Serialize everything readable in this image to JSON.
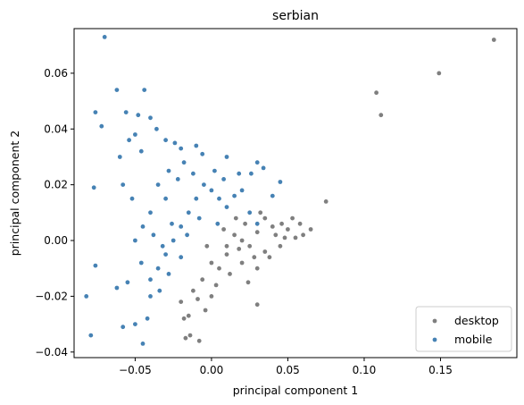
{
  "chart_data": {
    "type": "scatter",
    "title": "serbian",
    "xlabel": "principal component 1",
    "ylabel": "principal component 2",
    "xlim": [
      -0.09,
      0.2
    ],
    "ylim": [
      -0.042,
      0.076
    ],
    "xticks": [
      -0.05,
      0.0,
      0.05,
      0.1,
      0.15
    ],
    "xtick_labels": [
      "−0.05",
      "0.00",
      "0.05",
      "0.10",
      "0.15"
    ],
    "yticks": [
      -0.04,
      -0.02,
      0.0,
      0.02,
      0.04,
      0.06
    ],
    "ytick_labels": [
      "−0.04",
      "−0.02",
      "0.00",
      "0.02",
      "0.04",
      "0.06"
    ],
    "grid": false,
    "legend_position": "lower-right",
    "series": [
      {
        "name": "desktop",
        "color": "#7f7f7f",
        "points": [
          [
            0.185,
            0.072
          ],
          [
            0.149,
            0.06
          ],
          [
            0.108,
            0.053
          ],
          [
            0.111,
            0.045
          ],
          [
            0.075,
            0.014
          ],
          [
            0.065,
            0.004
          ],
          [
            0.058,
            0.006
          ],
          [
            0.055,
            0.001
          ],
          [
            0.05,
            0.004
          ],
          [
            0.048,
            0.001
          ],
          [
            0.053,
            0.008
          ],
          [
            0.045,
            -0.002
          ],
          [
            0.04,
            0.005
          ],
          [
            0.035,
            -0.004
          ],
          [
            0.032,
            0.01
          ],
          [
            0.03,
            -0.01
          ],
          [
            0.03,
            0.003
          ],
          [
            0.028,
            -0.006
          ],
          [
            0.025,
            -0.002
          ],
          [
            0.022,
            0.006
          ],
          [
            0.02,
            -0.008
          ],
          [
            0.018,
            -0.003
          ],
          [
            0.015,
            0.002
          ],
          [
            0.012,
            -0.012
          ],
          [
            0.01,
            -0.005
          ],
          [
            0.008,
            0.004
          ],
          [
            0.005,
            -0.01
          ],
          [
            0.003,
            -0.016
          ],
          [
            0.0,
            -0.008
          ],
          [
            -0.003,
            -0.002
          ],
          [
            -0.006,
            -0.014
          ],
          [
            -0.009,
            -0.021
          ],
          [
            -0.012,
            -0.018
          ],
          [
            -0.015,
            -0.027
          ],
          [
            -0.018,
            -0.028
          ],
          [
            -0.02,
            -0.022
          ],
          [
            -0.017,
            -0.035
          ],
          [
            -0.008,
            -0.036
          ],
          [
            -0.014,
            -0.034
          ],
          [
            0.03,
            -0.023
          ],
          [
            0.035,
            0.008
          ],
          [
            0.042,
            0.002
          ],
          [
            0.038,
            -0.006
          ],
          [
            0.024,
            -0.015
          ],
          [
            0.016,
            0.008
          ],
          [
            0.0,
            -0.02
          ],
          [
            -0.004,
            -0.025
          ],
          [
            0.01,
            -0.002
          ],
          [
            0.02,
            0.0
          ],
          [
            0.06,
            0.002
          ],
          [
            0.046,
            0.006
          ]
        ]
      },
      {
        "name": "mobile",
        "color": "#4682b4",
        "points": [
          [
            -0.07,
            0.073
          ],
          [
            -0.062,
            0.054
          ],
          [
            -0.044,
            0.054
          ],
          [
            -0.076,
            0.046
          ],
          [
            -0.072,
            0.041
          ],
          [
            -0.056,
            0.046
          ],
          [
            -0.048,
            0.045
          ],
          [
            -0.04,
            0.044
          ],
          [
            -0.036,
            0.04
          ],
          [
            -0.05,
            0.038
          ],
          [
            -0.046,
            0.032
          ],
          [
            -0.054,
            0.036
          ],
          [
            -0.06,
            0.03
          ],
          [
            -0.03,
            0.036
          ],
          [
            -0.024,
            0.035
          ],
          [
            -0.02,
            0.033
          ],
          [
            -0.01,
            0.034
          ],
          [
            -0.006,
            0.031
          ],
          [
            0.01,
            0.03
          ],
          [
            0.03,
            0.028
          ],
          [
            0.026,
            0.024
          ],
          [
            0.034,
            0.026
          ],
          [
            -0.077,
            0.019
          ],
          [
            -0.076,
            -0.009
          ],
          [
            -0.082,
            -0.02
          ],
          [
            -0.079,
            -0.034
          ],
          [
            -0.058,
            -0.031
          ],
          [
            -0.05,
            -0.03
          ],
          [
            -0.042,
            -0.028
          ],
          [
            -0.045,
            -0.037
          ],
          [
            -0.062,
            -0.017
          ],
          [
            -0.055,
            -0.015
          ],
          [
            -0.04,
            -0.02
          ],
          [
            -0.035,
            -0.01
          ],
          [
            -0.03,
            -0.005
          ],
          [
            -0.025,
            0.0
          ],
          [
            -0.02,
            0.005
          ],
          [
            -0.015,
            0.01
          ],
          [
            -0.01,
            0.015
          ],
          [
            -0.005,
            0.02
          ],
          [
            0.0,
            0.018
          ],
          [
            0.005,
            0.015
          ],
          [
            0.01,
            0.012
          ],
          [
            0.015,
            0.016
          ],
          [
            0.02,
            0.018
          ],
          [
            0.025,
            0.01
          ],
          [
            0.03,
            0.006
          ],
          [
            -0.03,
            0.015
          ],
          [
            -0.035,
            0.02
          ],
          [
            -0.04,
            0.01
          ],
          [
            -0.045,
            0.005
          ],
          [
            -0.05,
            0.0
          ],
          [
            -0.028,
            0.025
          ],
          [
            -0.022,
            0.022
          ],
          [
            -0.018,
            0.028
          ],
          [
            -0.012,
            0.024
          ],
          [
            0.002,
            0.025
          ],
          [
            0.008,
            0.022
          ],
          [
            0.018,
            0.024
          ],
          [
            -0.038,
            0.002
          ],
          [
            -0.032,
            -0.002
          ],
          [
            -0.026,
            0.006
          ],
          [
            -0.016,
            0.002
          ],
          [
            -0.008,
            0.008
          ],
          [
            0.004,
            0.006
          ],
          [
            -0.046,
            -0.008
          ],
          [
            -0.04,
            -0.014
          ],
          [
            -0.034,
            -0.018
          ],
          [
            -0.028,
            -0.012
          ],
          [
            -0.02,
            -0.006
          ],
          [
            0.04,
            0.016
          ],
          [
            0.045,
            0.021
          ],
          [
            -0.058,
            0.02
          ],
          [
            -0.052,
            0.015
          ]
        ]
      }
    ]
  }
}
